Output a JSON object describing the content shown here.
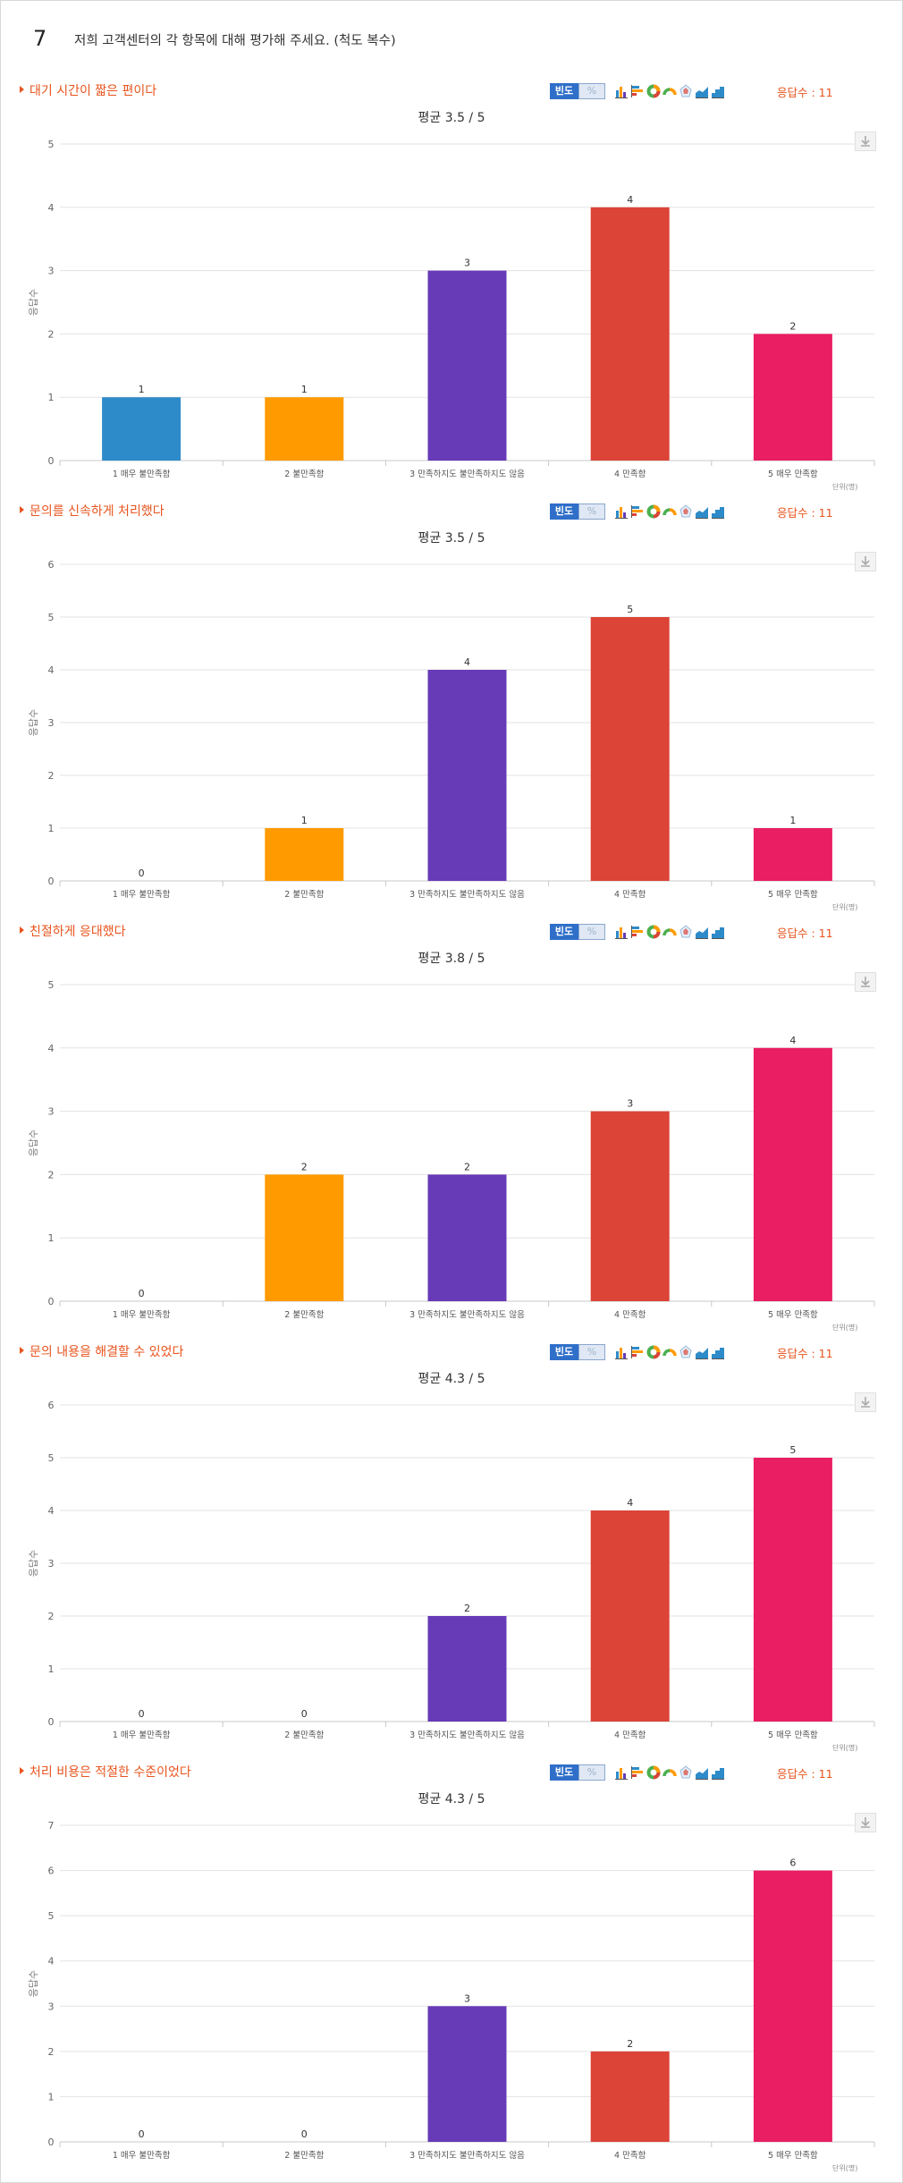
{
  "question": {
    "number": "7",
    "text": "저희 고객센터의 각 항목에 대해 평가해 주세요. (척도 복수)"
  },
  "toolbar": {
    "freq_label": "빈도",
    "pct_label": "%",
    "icons": [
      "bar-chart-icon",
      "horizontal-bar-icon",
      "donut-chart-icon",
      "semi-donut-icon",
      "radar-chart-icon",
      "area-chart-icon",
      "step-chart-icon"
    ]
  },
  "sections": [
    {
      "title": "대기 시간이 짧은 편이다",
      "avg": "평균 3.5 / 5",
      "resp": "응답수 : 11"
    },
    {
      "title": "문의를 신속하게 처리했다",
      "avg": "평균 3.5 / 5",
      "resp": "응답수 : 11"
    },
    {
      "title": "친절하게 응대했다",
      "avg": "평균 3.8 / 5",
      "resp": "응답수 : 11"
    },
    {
      "title": "문의 내용을 해결할 수 있었다",
      "avg": "평균 4.3 / 5",
      "resp": "응답수 : 11"
    },
    {
      "title": "처리 비용은 적절한 수준이었다",
      "avg": "평균 4.3 / 5",
      "resp": "응답수 : 11"
    }
  ],
  "unit_label": "단위(명)",
  "chart_data": [
    {
      "type": "bar",
      "title": "대기 시간이 짧은 편이다",
      "ylabel": "응답수",
      "categories": [
        "1 매우 불만족함",
        "2 불만족함",
        "3 만족하지도 불만족하지도 않음",
        "4 만족함",
        "5 매우 만족함"
      ],
      "values": [
        1,
        1,
        3,
        4,
        2
      ],
      "ylim": [
        0,
        5
      ],
      "yticks": [
        0,
        1,
        2,
        3,
        4,
        5
      ],
      "colors": [
        "#2e8bc9",
        "#ff9a00",
        "#673ab7",
        "#db4437",
        "#e91e63"
      ],
      "grid": true
    },
    {
      "type": "bar",
      "title": "문의를 신속하게 처리했다",
      "ylabel": "응답수",
      "categories": [
        "1 매우 불만족함",
        "2 불만족함",
        "3 만족하지도 불만족하지도 않음",
        "4 만족함",
        "5 매우 만족함"
      ],
      "values": [
        0,
        1,
        4,
        5,
        1
      ],
      "ylim": [
        0,
        6
      ],
      "yticks": [
        0,
        1,
        2,
        3,
        4,
        5,
        6
      ],
      "colors": [
        "#2e8bc9",
        "#ff9a00",
        "#673ab7",
        "#db4437",
        "#e91e63"
      ],
      "grid": true
    },
    {
      "type": "bar",
      "title": "친절하게 응대했다",
      "ylabel": "응답수",
      "categories": [
        "1 매우 불만족함",
        "2 불만족함",
        "3 만족하지도 불만족하지도 않음",
        "4 만족함",
        "5 매우 만족함"
      ],
      "values": [
        0,
        2,
        2,
        3,
        4
      ],
      "ylim": [
        0,
        5
      ],
      "yticks": [
        0,
        1,
        2,
        3,
        4,
        5
      ],
      "colors": [
        "#2e8bc9",
        "#ff9a00",
        "#673ab7",
        "#db4437",
        "#e91e63"
      ],
      "grid": true
    },
    {
      "type": "bar",
      "title": "문의 내용을 해결할 수 있었다",
      "ylabel": "응답수",
      "categories": [
        "1 매우 불만족함",
        "2 불만족함",
        "3 만족하지도 불만족하지도 않음",
        "4 만족함",
        "5 매우 만족함"
      ],
      "values": [
        0,
        0,
        2,
        4,
        5
      ],
      "ylim": [
        0,
        6
      ],
      "yticks": [
        0,
        1,
        2,
        3,
        4,
        5,
        6
      ],
      "colors": [
        "#2e8bc9",
        "#ff9a00",
        "#673ab7",
        "#db4437",
        "#e91e63"
      ],
      "grid": true
    },
    {
      "type": "bar",
      "title": "처리 비용은 적절한 수준이었다",
      "ylabel": "응답수",
      "categories": [
        "1 매우 불만족함",
        "2 불만족함",
        "3 만족하지도 불만족하지도 않음",
        "4 만족함",
        "5 매우 만족함"
      ],
      "values": [
        0,
        0,
        3,
        2,
        6
      ],
      "ylim": [
        0,
        7
      ],
      "yticks": [
        0,
        1,
        2,
        3,
        4,
        5,
        6,
        7
      ],
      "colors": [
        "#2e8bc9",
        "#ff9a00",
        "#673ab7",
        "#db4437",
        "#e91e63"
      ],
      "grid": true
    }
  ]
}
